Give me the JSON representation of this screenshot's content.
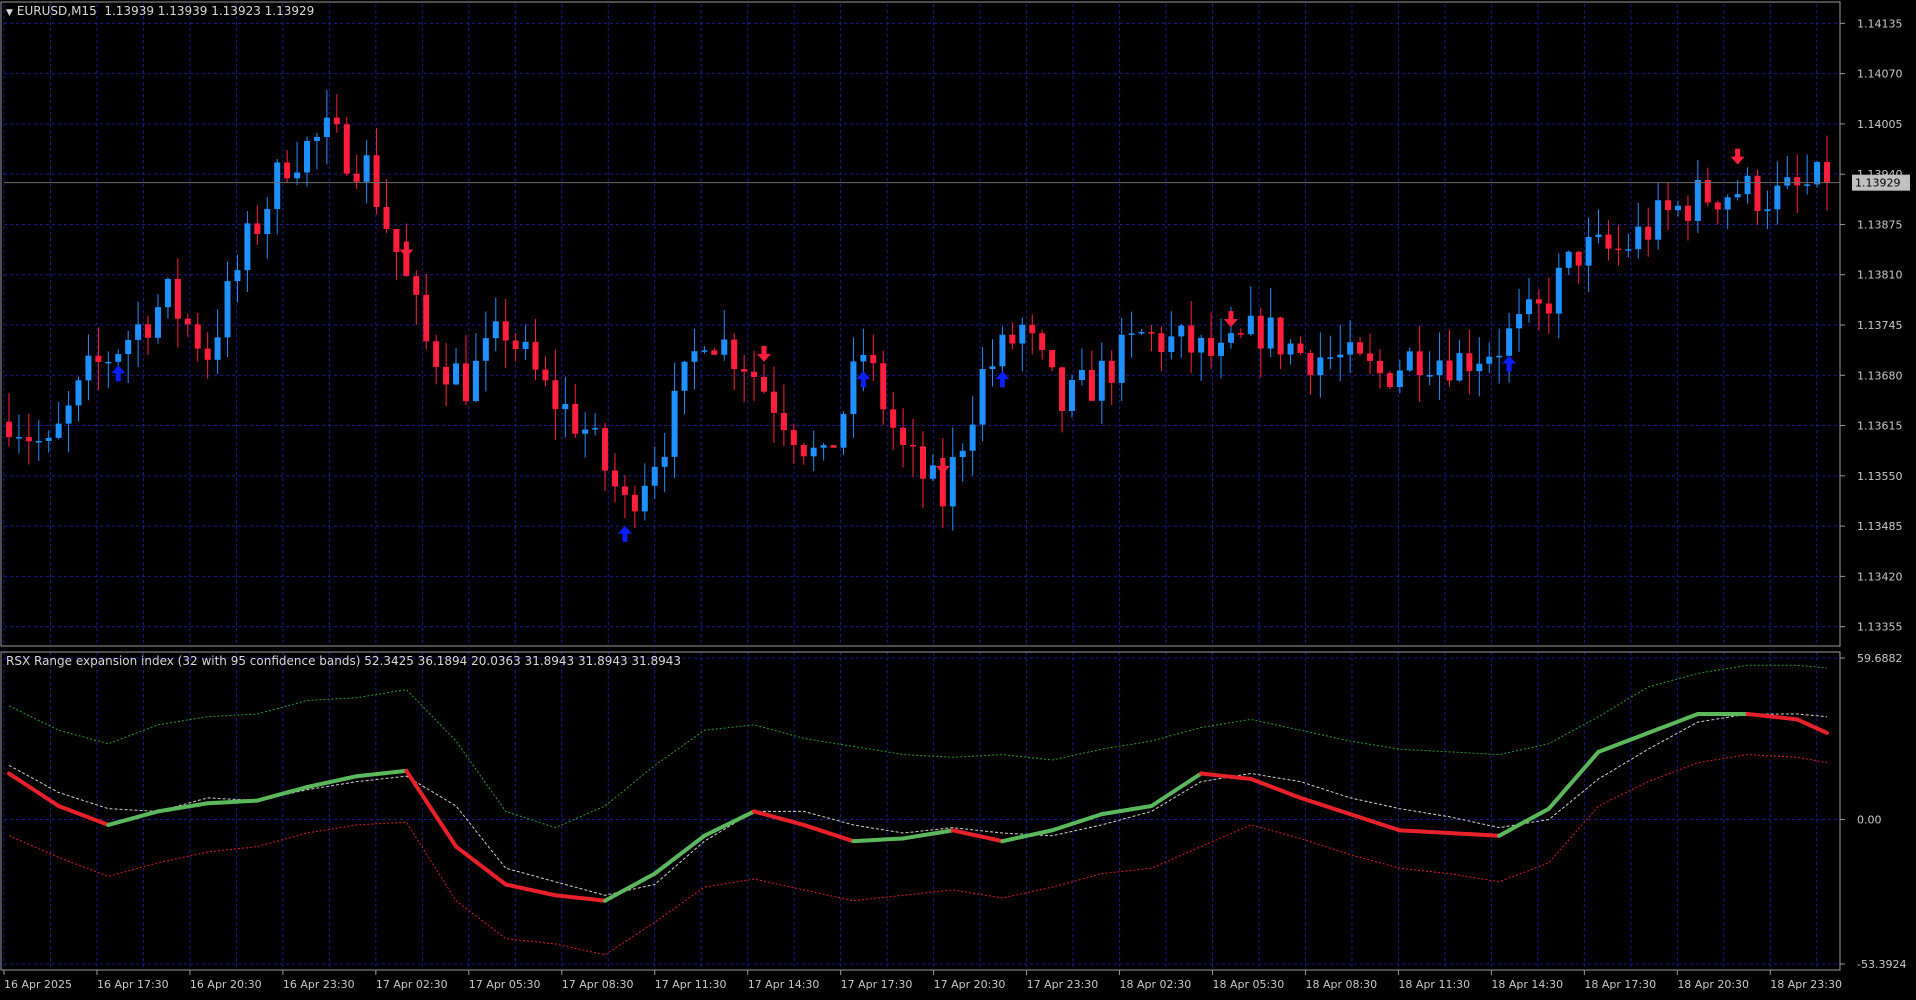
{
  "header": {
    "symbol": "EURUSD,M15",
    "quotes": "1.13939 1.13939 1.13923 1.13929"
  },
  "indicator": {
    "label": "RSX Range expansion index (32 with 95 confidence bands) 52.3425 36.1894 20.0363 31.8943 31.8943 31.8943"
  },
  "colors": {
    "background": "#000000",
    "grid": "#1c1c8c",
    "bull": "#1e90ff",
    "bear": "#ff1e3c",
    "up_arrow": "#0a1eff",
    "down_arrow": "#ff1e3c",
    "rsx_up": "#5cb85c",
    "rsx_down": "#e8202a",
    "band_upper": "#2e9a2e",
    "band_lower": "#d82020",
    "band_mid": "#d0d0d0",
    "price_tag": "#c0c0c0"
  },
  "chart_data": [
    {
      "type": "candlestick",
      "price_axis_ticks": [
        "1.14135",
        "1.14070",
        "1.14005",
        "1.13940",
        "1.13875",
        "1.13810",
        "1.13745",
        "1.13680",
        "1.13615",
        "1.13550",
        "1.13485",
        "1.13420",
        "1.13355"
      ],
      "ylim": [
        1.1333,
        1.1416
      ],
      "last_price": "1.13929",
      "last_price_value": 1.13929,
      "time_axis_labels": [
        "16 Apr 2025",
        "16 Apr 17:30",
        "16 Apr 20:30",
        "16 Apr 23:30",
        "17 Apr 02:30",
        "17 Apr 05:30",
        "17 Apr 08:30",
        "17 Apr 11:30",
        "17 Apr 14:30",
        "17 Apr 17:30",
        "17 Apr 20:30",
        "17 Apr 23:30",
        "18 Apr 02:30",
        "18 Apr 05:30",
        "18 Apr 08:30",
        "18 Apr 11:30",
        "18 Apr 14:30",
        "18 Apr 17:30",
        "18 Apr 20:30",
        "18 Apr 23:30"
      ],
      "close_path": [
        [
          0,
          1.1363
        ],
        [
          4,
          1.1358
        ],
        [
          8,
          1.1368
        ],
        [
          12,
          1.1373
        ],
        [
          16,
          1.1378
        ],
        [
          20,
          1.1371
        ],
        [
          24,
          1.1385
        ],
        [
          28,
          1.1396
        ],
        [
          32,
          1.1399
        ],
        [
          36,
          1.1395
        ],
        [
          39,
          1.1384
        ],
        [
          42,
          1.1372
        ],
        [
          46,
          1.1367
        ],
        [
          50,
          1.1374
        ],
        [
          54,
          1.1366
        ],
        [
          58,
          1.1361
        ],
        [
          62,
          1.1351
        ],
        [
          66,
          1.136
        ],
        [
          70,
          1.1374
        ],
        [
          74,
          1.137
        ],
        [
          78,
          1.1363
        ],
        [
          82,
          1.1356
        ],
        [
          86,
          1.1371
        ],
        [
          90,
          1.1358
        ],
        [
          94,
          1.1352
        ],
        [
          98,
          1.1368
        ],
        [
          102,
          1.1374
        ],
        [
          106,
          1.1364
        ],
        [
          110,
          1.1368
        ],
        [
          114,
          1.1373
        ],
        [
          118,
          1.1372
        ],
        [
          122,
          1.137
        ],
        [
          126,
          1.1374
        ],
        [
          130,
          1.1371
        ],
        [
          134,
          1.137
        ],
        [
          138,
          1.1368
        ],
        [
          142,
          1.1371
        ],
        [
          146,
          1.137
        ],
        [
          150,
          1.1372
        ],
        [
          154,
          1.1376
        ],
        [
          158,
          1.1384
        ],
        [
          162,
          1.1384
        ],
        [
          166,
          1.1388
        ],
        [
          170,
          1.1391
        ],
        [
          174,
          1.1392
        ],
        [
          178,
          1.1391
        ],
        [
          183,
          1.1393
        ]
      ],
      "bar_count": 184,
      "signals": {
        "up": [
          11,
          62,
          86,
          100,
          151
        ],
        "down": [
          40,
          76,
          94,
          123,
          174
        ]
      }
    },
    {
      "type": "line",
      "name": "RSX Range expansion index",
      "ylim": [
        -53.3924,
        59.6882
      ],
      "axis_labels": [
        "59.6882",
        "0.00",
        "-53.3924"
      ],
      "values": {
        "upper": 52.3425,
        "signal": 36.1894,
        "lower": 20.0363,
        "rsx": 31.8943
      },
      "rsx_path": [
        [
          0,
          17
        ],
        [
          5,
          5
        ],
        [
          10,
          -2
        ],
        [
          15,
          3
        ],
        [
          20,
          6
        ],
        [
          25,
          7
        ],
        [
          30,
          12
        ],
        [
          35,
          16
        ],
        [
          40,
          18
        ],
        [
          45,
          -10
        ],
        [
          50,
          -24
        ],
        [
          55,
          -28
        ],
        [
          60,
          -30
        ],
        [
          65,
          -20
        ],
        [
          70,
          -6
        ],
        [
          75,
          3
        ],
        [
          80,
          -2
        ],
        [
          85,
          -8
        ],
        [
          90,
          -7
        ],
        [
          95,
          -4
        ],
        [
          100,
          -8
        ],
        [
          105,
          -4
        ],
        [
          110,
          2
        ],
        [
          115,
          5
        ],
        [
          120,
          17
        ],
        [
          125,
          15
        ],
        [
          130,
          8
        ],
        [
          135,
          2
        ],
        [
          140,
          -4
        ],
        [
          145,
          -5
        ],
        [
          150,
          -6
        ],
        [
          155,
          4
        ],
        [
          160,
          25
        ],
        [
          165,
          32
        ],
        [
          170,
          39
        ],
        [
          175,
          39
        ],
        [
          180,
          37
        ],
        [
          183,
          32
        ]
      ],
      "upper_path": [
        [
          0,
          42
        ],
        [
          5,
          33
        ],
        [
          10,
          28
        ],
        [
          15,
          35
        ],
        [
          20,
          38
        ],
        [
          25,
          39
        ],
        [
          30,
          44
        ],
        [
          35,
          45
        ],
        [
          40,
          48
        ],
        [
          45,
          29
        ],
        [
          50,
          3
        ],
        [
          55,
          -3
        ],
        [
          60,
          5
        ],
        [
          65,
          20
        ],
        [
          70,
          33
        ],
        [
          75,
          35
        ],
        [
          80,
          30
        ],
        [
          85,
          27
        ],
        [
          90,
          24
        ],
        [
          95,
          23
        ],
        [
          100,
          24
        ],
        [
          105,
          22
        ],
        [
          110,
          26
        ],
        [
          115,
          29
        ],
        [
          120,
          34
        ],
        [
          125,
          37
        ],
        [
          130,
          33
        ],
        [
          135,
          29
        ],
        [
          140,
          26
        ],
        [
          145,
          25
        ],
        [
          150,
          24
        ],
        [
          155,
          28
        ],
        [
          160,
          38
        ],
        [
          165,
          49
        ],
        [
          170,
          54
        ],
        [
          175,
          57
        ],
        [
          180,
          57
        ],
        [
          183,
          56
        ]
      ],
      "lower_path": [
        [
          0,
          -6
        ],
        [
          5,
          -14
        ],
        [
          10,
          -21
        ],
        [
          15,
          -16
        ],
        [
          20,
          -12
        ],
        [
          25,
          -10
        ],
        [
          30,
          -5
        ],
        [
          35,
          -2
        ],
        [
          40,
          -1
        ],
        [
          45,
          -30
        ],
        [
          50,
          -44
        ],
        [
          55,
          -46
        ],
        [
          60,
          -50
        ],
        [
          65,
          -38
        ],
        [
          70,
          -25
        ],
        [
          75,
          -22
        ],
        [
          80,
          -26
        ],
        [
          85,
          -30
        ],
        [
          90,
          -28
        ],
        [
          95,
          -26
        ],
        [
          100,
          -29
        ],
        [
          105,
          -25
        ],
        [
          110,
          -20
        ],
        [
          115,
          -18
        ],
        [
          120,
          -10
        ],
        [
          125,
          -2
        ],
        [
          130,
          -7
        ],
        [
          135,
          -13
        ],
        [
          140,
          -18
        ],
        [
          145,
          -20
        ],
        [
          150,
          -23
        ],
        [
          155,
          -16
        ],
        [
          160,
          5
        ],
        [
          165,
          14
        ],
        [
          170,
          21
        ],
        [
          175,
          24
        ],
        [
          180,
          23
        ],
        [
          183,
          21
        ]
      ],
      "signal_path": [
        [
          0,
          20
        ],
        [
          5,
          10
        ],
        [
          10,
          4
        ],
        [
          15,
          3
        ],
        [
          20,
          8
        ],
        [
          25,
          7
        ],
        [
          30,
          11
        ],
        [
          35,
          14
        ],
        [
          40,
          16
        ],
        [
          45,
          5
        ],
        [
          50,
          -18
        ],
        [
          55,
          -23
        ],
        [
          60,
          -28
        ],
        [
          65,
          -24
        ],
        [
          70,
          -8
        ],
        [
          75,
          3
        ],
        [
          80,
          3
        ],
        [
          85,
          -2
        ],
        [
          90,
          -5
        ],
        [
          95,
          -3
        ],
        [
          100,
          -5
        ],
        [
          105,
          -6
        ],
        [
          110,
          -2
        ],
        [
          115,
          3
        ],
        [
          120,
          14
        ],
        [
          125,
          17
        ],
        [
          130,
          14
        ],
        [
          135,
          8
        ],
        [
          140,
          4
        ],
        [
          145,
          1
        ],
        [
          150,
          -3
        ],
        [
          155,
          0
        ],
        [
          160,
          15
        ],
        [
          165,
          26
        ],
        [
          170,
          36
        ],
        [
          175,
          39
        ],
        [
          180,
          39
        ],
        [
          183,
          38
        ]
      ]
    }
  ]
}
